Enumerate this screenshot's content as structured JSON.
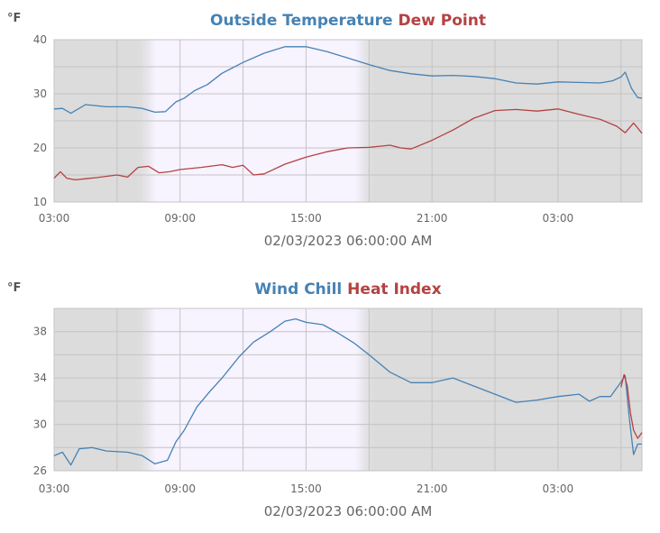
{
  "chart_data": [
    {
      "type": "line",
      "title_parts": [
        "Outside Temperature",
        "Dew Point"
      ],
      "ylabel": "°F",
      "xlabel": "02/03/2023 06:00:00 AM",
      "ylim": [
        10,
        40
      ],
      "yticks": [
        "10",
        "20",
        "30",
        "40"
      ],
      "xlim": [
        3,
        31
      ],
      "xticks": [
        {
          "hour": 3,
          "label": "03:00"
        },
        {
          "hour": 9,
          "label": "09:00"
        },
        {
          "hour": 15,
          "label": "15:00"
        },
        {
          "hour": 21,
          "label": "21:00"
        },
        {
          "hour": 27,
          "label": "03:00"
        }
      ],
      "daylight_hours": [
        7.8,
        17.4
      ],
      "grid": true,
      "series": [
        {
          "name": "Outside Temperature",
          "color": "#4682b4",
          "x": [
            3,
            3.4,
            3.8,
            4.5,
            5.5,
            6.5,
            7.2,
            7.8,
            8.3,
            8.8,
            9.2,
            9.7,
            10.3,
            11,
            12,
            13,
            14,
            15,
            16,
            17,
            18,
            19,
            20,
            21,
            22,
            23,
            24,
            25,
            26,
            27,
            28,
            29,
            29.6,
            30.0,
            30.2,
            30.5,
            30.8,
            31
          ],
          "values": [
            27.2,
            27.3,
            26.4,
            28,
            27.6,
            27.6,
            27.3,
            26.6,
            26.7,
            28.5,
            29.2,
            30.6,
            31.7,
            33.8,
            35.8,
            37.5,
            38.7,
            38.7,
            37.8,
            36.6,
            35.4,
            34.3,
            33.7,
            33.3,
            33.4,
            33.2,
            32.8,
            32.0,
            31.8,
            32.2,
            32.1,
            32.0,
            32.4,
            33.1,
            34.0,
            31.0,
            29.3,
            29.2
          ]
        },
        {
          "name": "Dew Point",
          "color": "#b44242",
          "x": [
            3,
            3.3,
            3.6,
            4.0,
            4.5,
            5,
            6,
            6.5,
            7,
            7.5,
            8,
            8.5,
            9,
            10,
            11,
            11.5,
            12,
            12.5,
            13,
            14,
            15,
            16,
            17,
            18,
            19,
            19.5,
            20,
            21,
            22,
            23,
            24,
            25,
            26,
            27,
            28,
            29,
            29.8,
            30.2,
            30.6,
            31
          ],
          "values": [
            14.4,
            15.6,
            14.4,
            14.1,
            14.3,
            14.5,
            15.0,
            14.6,
            16.4,
            16.6,
            15.4,
            15.6,
            16.0,
            16.4,
            16.9,
            16.4,
            16.8,
            15.0,
            15.2,
            17.0,
            18.3,
            19.3,
            20.0,
            20.1,
            20.5,
            20.0,
            19.8,
            21.4,
            23.3,
            25.5,
            26.9,
            27.1,
            26.8,
            27.2,
            26.2,
            25.3,
            24.0,
            22.8,
            24.6,
            22.7
          ]
        }
      ]
    },
    {
      "type": "line",
      "title_parts": [
        "Wind Chill",
        "Heat Index"
      ],
      "ylabel": "°F",
      "xlabel": "02/03/2023 06:00:00 AM",
      "ylim": [
        26,
        40
      ],
      "yticks": [
        "26",
        "30",
        "34",
        "38"
      ],
      "xlim": [
        3,
        31
      ],
      "xticks": [
        {
          "hour": 3,
          "label": "03:00"
        },
        {
          "hour": 9,
          "label": "09:00"
        },
        {
          "hour": 15,
          "label": "15:00"
        },
        {
          "hour": 21,
          "label": "21:00"
        },
        {
          "hour": 27,
          "label": "03:00"
        }
      ],
      "daylight_hours": [
        7.8,
        17.4
      ],
      "grid": true,
      "series": [
        {
          "name": "Wind Chill",
          "color": "#4682b4",
          "x": [
            3,
            3.4,
            3.8,
            4.2,
            4.8,
            5.5,
            6.5,
            7.2,
            7.8,
            8.4,
            8.8,
            9.2,
            9.8,
            10.4,
            11,
            11.8,
            12.5,
            13.3,
            14,
            14.5,
            15,
            15.8,
            16.5,
            17.3,
            18,
            19,
            20,
            21,
            22,
            23,
            24,
            25,
            26,
            27,
            28,
            28.5,
            29,
            29.5,
            29.9,
            30.2,
            30.4,
            30.6,
            30.8,
            31
          ],
          "values": [
            27.3,
            27.6,
            26.5,
            27.9,
            28.0,
            27.7,
            27.6,
            27.3,
            26.6,
            26.9,
            28.5,
            29.5,
            31.5,
            32.8,
            34.0,
            35.8,
            37.1,
            38.0,
            38.9,
            39.1,
            38.8,
            38.6,
            37.9,
            37.0,
            36.0,
            34.5,
            33.6,
            33.6,
            34.0,
            33.3,
            32.6,
            31.9,
            32.1,
            32.4,
            32.6,
            32.0,
            32.4,
            32.4,
            33.4,
            34.2,
            30.5,
            27.4,
            28.3,
            28.3
          ]
        },
        {
          "name": "Heat Index",
          "color": "#b44242",
          "x": [
            30.0,
            30.15,
            30.3,
            30.45,
            30.6,
            30.8,
            31
          ],
          "values": [
            33.2,
            34.3,
            33.3,
            31.0,
            29.5,
            28.8,
            29.3
          ]
        }
      ]
    }
  ]
}
